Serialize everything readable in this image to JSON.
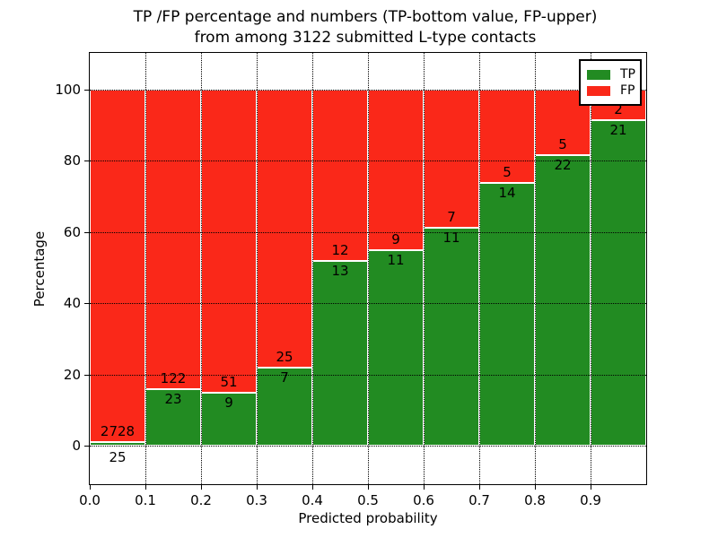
{
  "title": {
    "line1": "TP /FP percentage and numbers (TP-bottom value, FP-upper)",
    "line2": "from among 3122 submitted L-type contacts"
  },
  "axes": {
    "xlabel": "Predicted probability",
    "ylabel": "Percentage",
    "x_tick_values": [
      0.0,
      0.1,
      0.2,
      0.3,
      0.4,
      0.5,
      0.6,
      0.7,
      0.8,
      0.9
    ],
    "x_tick_labels": [
      "0.0",
      "0.1",
      "0.2",
      "0.3",
      "0.4",
      "0.5",
      "0.6",
      "0.7",
      "0.8",
      "0.9"
    ],
    "y_tick_values": [
      0,
      20,
      40,
      60,
      80,
      100
    ],
    "y_tick_labels": [
      "0",
      "20",
      "40",
      "60",
      "80",
      "100"
    ],
    "xlim": [
      0.0,
      1.0
    ],
    "ylim": [
      -10.8,
      110.3
    ],
    "grid": true
  },
  "legend": {
    "position": "upper right",
    "items": [
      {
        "label": "TP",
        "color": "#228b22"
      },
      {
        "label": "FP",
        "color": "#fa2819"
      }
    ]
  },
  "chart_data": {
    "type": "bar",
    "stacked": true,
    "normalized": "each bin stacked to 100%",
    "title": "TP /FP percentage and numbers (TP-bottom value, FP-upper) from among 3122 submitted L-type contacts",
    "xlabel": "Predicted probability",
    "ylabel": "Percentage",
    "total_contacts": 3122,
    "bin_edges": [
      0.0,
      0.1,
      0.2,
      0.3,
      0.4,
      0.5,
      0.6,
      0.7,
      0.8,
      0.9,
      1.0
    ],
    "categories": [
      "0.0-0.1",
      "0.1-0.2",
      "0.2-0.3",
      "0.3-0.4",
      "0.4-0.5",
      "0.5-0.6",
      "0.6-0.7",
      "0.7-0.8",
      "0.8-0.9",
      "0.9-1.0"
    ],
    "series": [
      {
        "name": "TP",
        "stack_position": "bottom",
        "color": "#228b22",
        "counts": [
          25,
          23,
          9,
          7,
          13,
          11,
          11,
          14,
          22,
          21
        ]
      },
      {
        "name": "FP",
        "stack_position": "top",
        "color": "#fa2819",
        "counts": [
          2728,
          122,
          51,
          25,
          12,
          9,
          7,
          5,
          5,
          2
        ]
      }
    ],
    "tp_percent_of_bin": [
      0.9,
      15.9,
      15.0,
      21.9,
      52.0,
      55.0,
      61.1,
      73.7,
      81.5,
      91.3
    ],
    "ylim": [
      -10.8,
      110.3
    ],
    "grid": true,
    "legend_position": "upper right"
  },
  "colors": {
    "tp_green": "#228b22",
    "fp_red": "#fa2819",
    "grid": "#000000",
    "background": "#ffffff"
  }
}
